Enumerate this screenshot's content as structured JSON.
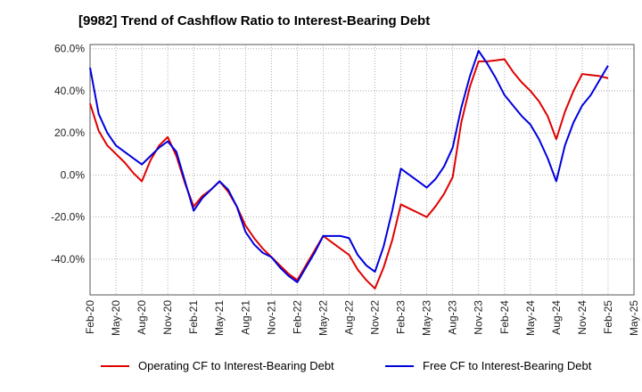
{
  "chart_data": {
    "type": "line",
    "title": "[9982]  Trend of Cashflow Ratio to Interest-Bearing Debt",
    "xlabel": "",
    "ylabel": "",
    "ylim": [
      -57,
      62
    ],
    "yticks": [
      60,
      40,
      20,
      0,
      -20,
      -40
    ],
    "ytick_labels": [
      "60.0%",
      "40.0%",
      "20.0%",
      "0.0%",
      "-20.0%",
      "-40.0%"
    ],
    "x_tick_labels": [
      "Feb-20",
      "May-20",
      "Aug-20",
      "Nov-20",
      "Feb-21",
      "May-21",
      "Aug-21",
      "Nov-21",
      "Feb-22",
      "May-22",
      "Aug-22",
      "Nov-22",
      "Feb-23",
      "May-23",
      "Aug-23",
      "Nov-23",
      "Feb-24",
      "May-24",
      "Aug-24",
      "Nov-24",
      "Feb-25",
      "May-25"
    ],
    "grid": true,
    "legend_position": "bottom",
    "series": [
      {
        "name": "Operating CF to Interest-Bearing Debt",
        "color": "#e00000",
        "values": [
          34,
          21,
          14,
          10,
          6,
          1,
          -3,
          7,
          14,
          18,
          9,
          -4,
          -15,
          -10,
          -7,
          -3,
          -8,
          -15,
          -24,
          -30,
          -35,
          -39,
          -43,
          -47,
          -50,
          -43,
          -36,
          -29,
          -32,
          -35,
          -38,
          -45,
          -50,
          -54,
          -44,
          -31,
          -14,
          -16,
          -18,
          -20,
          -15,
          -9,
          -1,
          25,
          42,
          54,
          54,
          54.5,
          55,
          49,
          44,
          40,
          35,
          28,
          17,
          30,
          40,
          48,
          47.5,
          47,
          46
        ]
      },
      {
        "name": "Free CF to Interest-Bearing Debt",
        "color": "#0000dd",
        "values": [
          51,
          29,
          20,
          14,
          11,
          8,
          5,
          9,
          13,
          16,
          11,
          -3,
          -17,
          -11,
          -7,
          -3,
          -7,
          -15,
          -27,
          -33,
          -37,
          -39,
          -44,
          -48,
          -51,
          -44,
          -37,
          -29,
          -29,
          -29,
          -30,
          -38,
          -43,
          -46,
          -34,
          -17,
          3,
          0,
          -3,
          -6,
          -2,
          4,
          13,
          32,
          47,
          59,
          53,
          46,
          38,
          33,
          28,
          24,
          17,
          8,
          -3,
          14,
          25,
          33,
          38,
          45,
          52
        ]
      }
    ]
  }
}
